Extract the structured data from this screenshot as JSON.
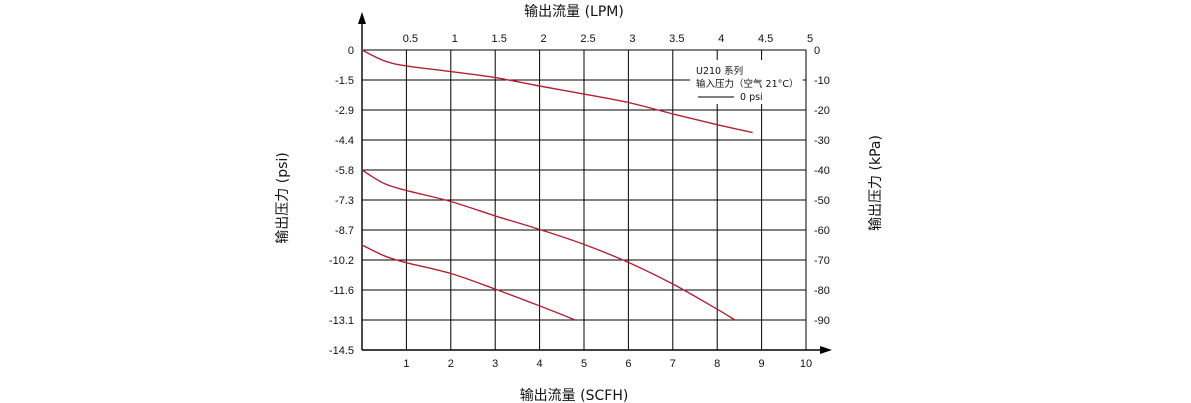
{
  "chart_data": {
    "type": "line",
    "x_bottom_label": "输出流量 (SCFH)",
    "x_top_label": "输出流量 (LPM)",
    "y_left_label": "输出压力 (psi)",
    "y_right_label": "输出压力 (kPa)",
    "x_bottom_ticks": [
      "1",
      "2",
      "3",
      "4",
      "5",
      "6",
      "7",
      "8",
      "9",
      "10"
    ],
    "x_top_ticks": [
      "0.5",
      "1",
      "1.5",
      "2",
      "2.5",
      "3",
      "3.5",
      "4",
      "4.5",
      "5"
    ],
    "y_left_ticks": [
      "0",
      "-1.5",
      "-2.9",
      "-4.4",
      "-5.8",
      "-7.3",
      "-8.7",
      "-10.2",
      "-11.6",
      "-13.1",
      "-14.5"
    ],
    "y_right_ticks": [
      "0",
      "-10",
      "-20",
      "-30",
      "-40",
      "-50",
      "-60",
      "-70",
      "-80",
      "-90"
    ],
    "xlim": [
      0,
      10
    ],
    "ylim_psi": [
      -14.5,
      0
    ],
    "ylim_kpa": [
      -100,
      0
    ],
    "grid": true,
    "legend": {
      "title": "U210 系列",
      "subtitle": "输入压力（空气 21°C）",
      "entry": "0 psi",
      "placement": "top-right"
    },
    "line_color": "#b22234",
    "series": [
      {
        "x": [
          0,
          0.5,
          1,
          2,
          3,
          4,
          5,
          6,
          7,
          8,
          8.8
        ],
        "y": [
          0,
          -3.6,
          -5.3,
          -7.2,
          -9.2,
          -12.0,
          -14.7,
          -17.5,
          -21.3,
          -24.9,
          -27.5
        ]
      },
      {
        "x": [
          0,
          0.5,
          1,
          2,
          3,
          4,
          5,
          6,
          7,
          8,
          8.4
        ],
        "y": [
          -40,
          -44.5,
          -46.8,
          -50.5,
          -55.3,
          -59.8,
          -64.8,
          -70.8,
          -78.0,
          -86.4,
          -90
        ]
      },
      {
        "x": [
          0,
          0.5,
          1,
          2,
          3,
          4,
          4.8
        ],
        "y": [
          -65,
          -68.6,
          -70.9,
          -74.5,
          -79.7,
          -85.3,
          -90
        ]
      }
    ]
  }
}
